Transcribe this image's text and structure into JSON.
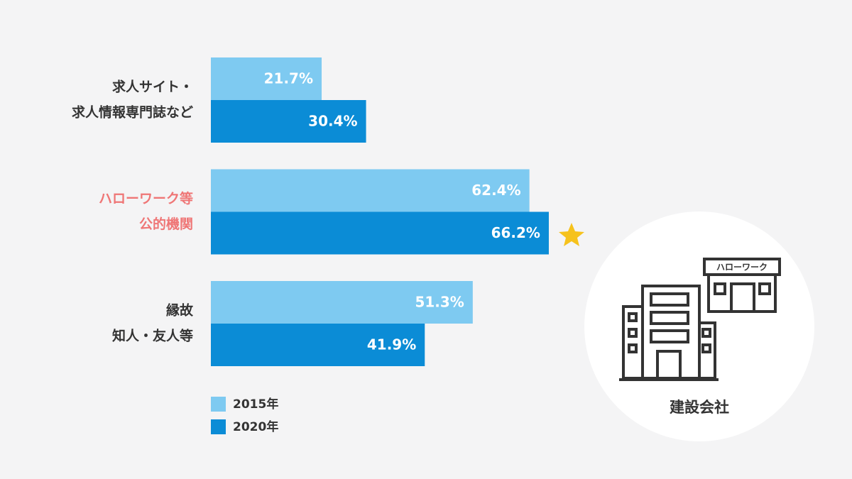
{
  "chart_data": {
    "type": "hbar",
    "categories": [
      [
        "求人サイト・",
        "求人情報専門誌など"
      ],
      [
        "ハローワーク等",
        "公的機関"
      ],
      [
        "縁故",
        "知人・友人等"
      ]
    ],
    "series": [
      {
        "name": "2015年",
        "color": "#7ecaf1",
        "values": [
          21.7,
          62.4,
          51.3
        ],
        "value_labels": [
          "21.7%",
          "62.4%",
          "51.3%"
        ]
      },
      {
        "name": "2020年",
        "color": "#0b8cd6",
        "values": [
          30.4,
          66.2,
          41.9
        ],
        "value_labels": [
          "30.4%",
          "66.2%",
          "41.9%"
        ]
      }
    ]
  },
  "illustration": {
    "sign": "ハローワーク",
    "label": "建設会社"
  }
}
